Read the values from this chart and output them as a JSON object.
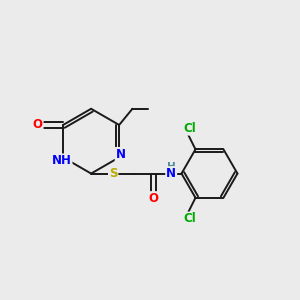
{
  "background_color": "#ebebeb",
  "bond_color": "#1a1a1a",
  "atom_colors": {
    "N": "#0000ff",
    "O": "#ff0000",
    "S": "#bbaa00",
    "Cl": "#00aa00",
    "NH": "#0000ff",
    "H": "#558899",
    "C": "#1a1a1a"
  },
  "bond_lw": 1.4,
  "font_size": 8.5
}
